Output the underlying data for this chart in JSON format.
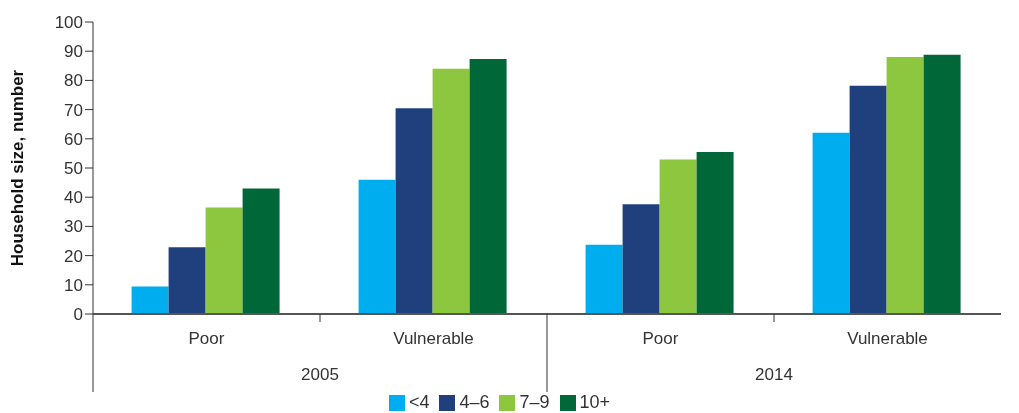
{
  "chart_data": {
    "type": "bar",
    "ylabel": "Household size, number",
    "categories": [
      "Poor",
      "Vulnerable",
      "Poor",
      "Vulnerable"
    ],
    "annotations": [
      "2005",
      "2014"
    ],
    "series": [
      {
        "name": "<4",
        "color": "#00aeef",
        "values": [
          9.4,
          46.0,
          23.7,
          62.1
        ]
      },
      {
        "name": "4–6",
        "color": "#1f407c",
        "values": [
          22.9,
          70.5,
          37.6,
          78.2
        ]
      },
      {
        "name": "7–9",
        "color": "#8dc63f",
        "values": [
          36.5,
          84.0,
          52.9,
          88.0
        ]
      },
      {
        "name": "10+",
        "color": "#006838",
        "values": [
          43.0,
          87.3,
          55.5,
          88.8
        ]
      }
    ],
    "ylim": [
      0,
      100
    ],
    "yticks": [
      0,
      10,
      20,
      30,
      40,
      50,
      60,
      70,
      80,
      90,
      100
    ],
    "grid": false,
    "legend": "bottom"
  }
}
